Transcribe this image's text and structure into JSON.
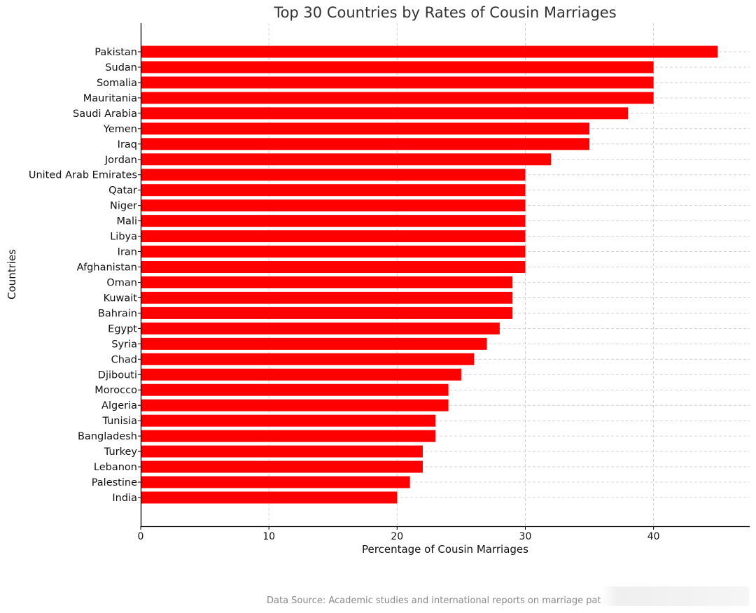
{
  "chart_data": {
    "type": "bar",
    "orientation": "horizontal",
    "title": "Top 30 Countries by Rates of Cousin Marriages",
    "xlabel": "Percentage of Cousin Marriages",
    "ylabel": "Countries",
    "xlim": [
      0,
      47.5
    ],
    "xticks": [
      0,
      10,
      20,
      30,
      40
    ],
    "grid": true,
    "bar_color": "#ff0000",
    "categories": [
      "Pakistan",
      "Sudan",
      "Somalia",
      "Mauritania",
      "Saudi Arabia",
      "Yemen",
      "Iraq",
      "Jordan",
      "United Arab Emirates",
      "Qatar",
      "Niger",
      "Mali",
      "Libya",
      "Iran",
      "Afghanistan",
      "Oman",
      "Kuwait",
      "Bahrain",
      "Egypt",
      "Syria",
      "Chad",
      "Djibouti",
      "Morocco",
      "Algeria",
      "Tunisia",
      "Bangladesh",
      "Turkey",
      "Lebanon",
      "Palestine",
      "India"
    ],
    "values": [
      45,
      40,
      40,
      40,
      38,
      35,
      35,
      32,
      30,
      30,
      30,
      30,
      30,
      30,
      30,
      29,
      29,
      29,
      28,
      27,
      26,
      25,
      24,
      24,
      23,
      23,
      22,
      22,
      21,
      20
    ]
  },
  "footer": {
    "source_note": "Data Source: Academic studies and international reports on marriage pat"
  }
}
